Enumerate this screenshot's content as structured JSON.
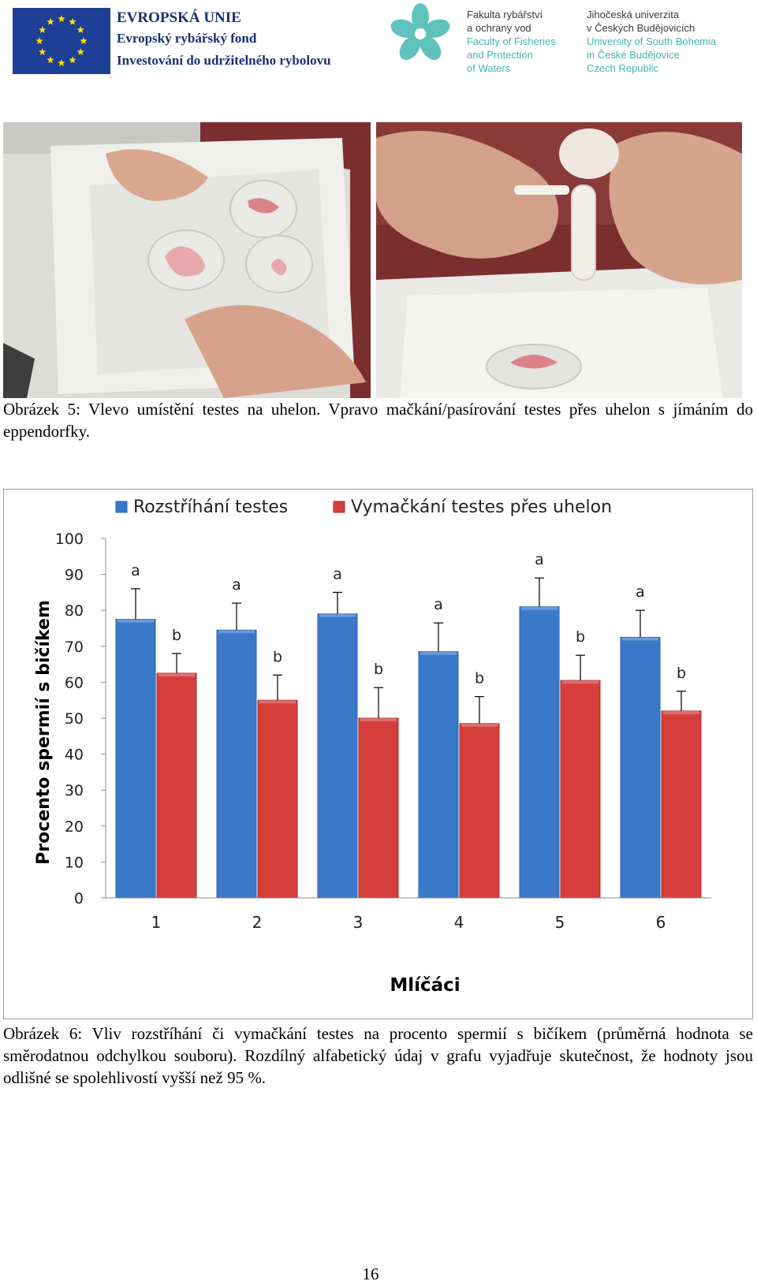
{
  "header": {
    "eu_title": "EVROPSKÁ UNIE",
    "eu_fund": "Evropský rybářský fond",
    "eu_invest": "Investování do udržitelného rybolovu",
    "faculty_lines_cz": [
      "Fakulta rybářství",
      "a ochrany vod"
    ],
    "faculty_lines_en": [
      "Faculty of Fisheries",
      "and Protection",
      "of Waters"
    ],
    "university_lines_cz": [
      "Jihočeská univerzita",
      "v Českých Budějovicích"
    ],
    "university_lines_en": [
      "University of South Bohemia",
      "in České Budějovice",
      "Czech Republic"
    ],
    "colors": {
      "eu_blue": "#1d3f95",
      "eu_star": "#ffdd00",
      "logo_teal": "#3fb5b0"
    }
  },
  "figure5": {
    "caption": "Obrázek 5: Vlevo umístění testes na uhelon. Vpravo mačkání/pasírování testes přes uhelon s jímáním do eppendorfky."
  },
  "chart_data": {
    "type": "bar",
    "categories": [
      "1",
      "2",
      "3",
      "4",
      "5",
      "6"
    ],
    "series": [
      {
        "name": "Rozstříhání testes",
        "color": "#3a79c9",
        "values": [
          77.5,
          74.5,
          79,
          68.5,
          81,
          72.5
        ],
        "error": [
          8.5,
          7.5,
          6,
          8,
          8,
          7.5
        ],
        "labels": [
          "a",
          "a",
          "a",
          "a",
          "a",
          "a"
        ]
      },
      {
        "name": "Vymačkání testes přes uhelon",
        "color": "#d63e3c",
        "values": [
          62.5,
          55,
          50,
          48.5,
          60.5,
          52
        ],
        "error": [
          5.5,
          7,
          8.5,
          7.5,
          7,
          5.5
        ],
        "labels": [
          "b",
          "b",
          "b",
          "b",
          "b",
          "b"
        ]
      }
    ],
    "xlabel": "Mlíčáci",
    "ylabel": "Procento spermií s bičíkem",
    "ylim": [
      0,
      100
    ],
    "yticks": [
      0,
      10,
      20,
      30,
      40,
      50,
      60,
      70,
      80,
      90,
      100
    ],
    "grid": false,
    "legend": "top"
  },
  "figure6": {
    "caption": "Obrázek 6: Vliv rozstříhání či vymačkání testes na procento spermií s bičíkem (průměrná hodnota se směrodatnou odchylkou souboru). Rozdílný alfabetický údaj v grafu vyjadřuje skutečnost, že hodnoty jsou odlišné se spolehlivostí vyšší než 95 %."
  },
  "page": {
    "number": "16"
  }
}
